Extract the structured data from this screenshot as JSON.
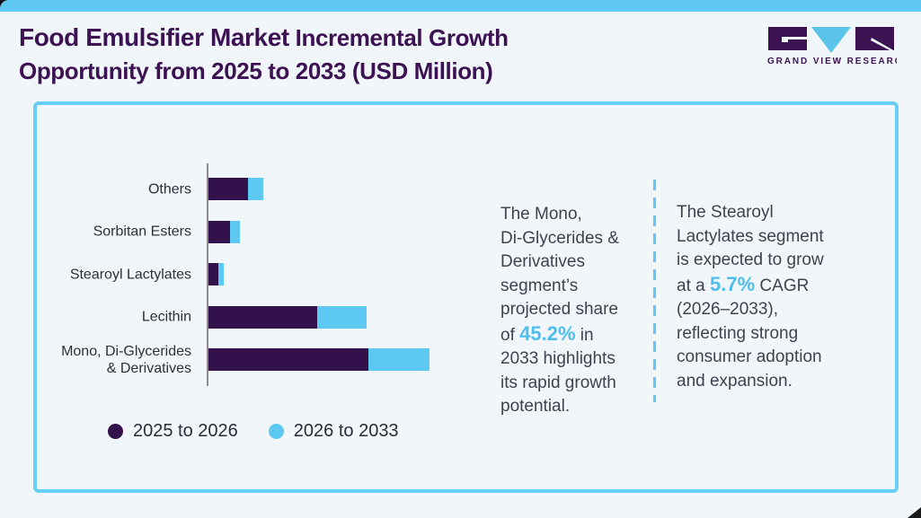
{
  "header": {
    "title_line1_strong": "Food Emulsifier Market",
    "title_line1_rest": " Incremental Growth",
    "title_line2": "Opportunity from 2025 to 2033 (USD Million)",
    "logo_text": "GRAND VIEW RESEARCH"
  },
  "chart_data": {
    "type": "bar",
    "orientation": "horizontal",
    "title": "Food Emulsifier Market Incremental Growth Opportunity from 2025 to 2033 (USD Million)",
    "categories": [
      "Others",
      "Sorbitan Esters",
      "Stearoyl Lactylates",
      "Lecithin",
      "Mono, Di-Glycerides\n& Derivatives"
    ],
    "series": [
      {
        "name": "2025 to 2026",
        "color": "#33114a",
        "values": [
          44,
          24,
          11,
          121,
          178
        ]
      },
      {
        "name": "2026 to 2033",
        "color": "#5dc9f3",
        "values": [
          17,
          11,
          6,
          55,
          68
        ]
      }
    ],
    "value_axis": {
      "labels_shown": false,
      "units": "USD Million",
      "note": "numeric axis not shown in figure; values are relative bar lengths"
    },
    "legend_position": "bottom-left",
    "grid": false
  },
  "annotations": [
    {
      "parts": [
        {
          "text": "The Mono,\nDi-Glycerides &\nDerivatives\nsegment’s\nprojected share\nof "
        },
        {
          "text": "45.2%",
          "highlight": true
        },
        {
          "text": " in\n2033 highlights\nits rapid growth\npotential."
        }
      ]
    },
    {
      "parts": [
        {
          "text": "The Stearoyl\nLactylates segment\nis expected to grow\nat a "
        },
        {
          "text": "5.7%",
          "highlight": true
        },
        {
          "text": " CAGR\n(2026–2033),\nreflecting strong\nconsumer adoption\nand expansion."
        }
      ]
    }
  ],
  "colors": {
    "highlight": "#4fbdee",
    "bar_dark": "#33114a",
    "bar_light": "#5dc9f3",
    "box_border": "#69cef6",
    "axis": "#8d8d8d",
    "topbar": "#5fc8f3",
    "title": "#3d1253",
    "background": "#f0f6fa"
  }
}
